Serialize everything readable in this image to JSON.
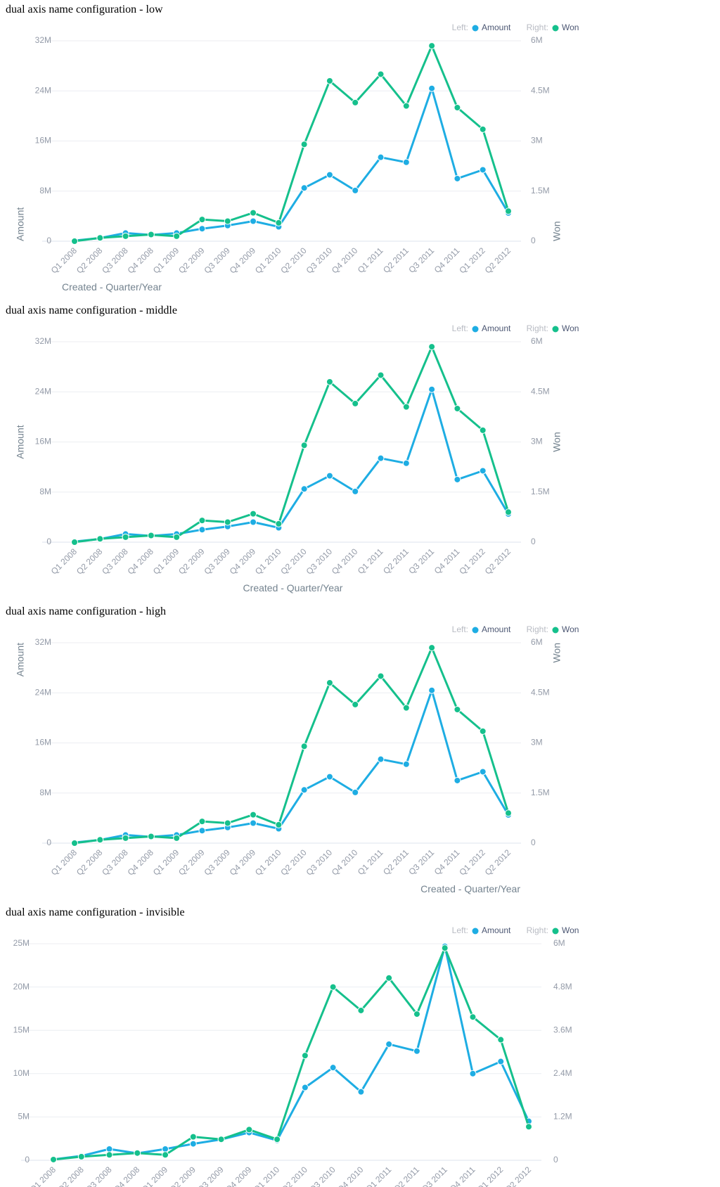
{
  "colors": {
    "amount": "#1eade3",
    "won": "#15c08c"
  },
  "legend": {
    "left_prefix": "Left:",
    "right_prefix": "Right:"
  },
  "categories": [
    "Q1 2008",
    "Q2 2008",
    "Q3 2008",
    "Q4 2008",
    "Q1 2009",
    "Q2 2009",
    "Q3 2009",
    "Q4 2009",
    "Q1 2010",
    "Q2 2010",
    "Q3 2010",
    "Q4 2010",
    "Q1 2011",
    "Q2 2011",
    "Q3 2011",
    "Q4 2011",
    "Q1 2012",
    "Q2 2012"
  ],
  "charts": [
    {
      "title": "dual axis name configuration - low",
      "x_title": "Created - Quarter/Year",
      "x_title_position": "low",
      "y_left_title": "Amount",
      "y_right_title": "Won",
      "left_ticks": [
        "0",
        "8M",
        "16M",
        "24M",
        "32M"
      ],
      "right_ticks": [
        "0",
        "1.5M",
        "3M",
        "4.5M",
        "6M"
      ]
    },
    {
      "title": "dual axis name configuration - middle",
      "x_title": "Created - Quarter/Year",
      "x_title_position": "middle",
      "y_left_title": "Amount",
      "y_right_title": "Won",
      "left_ticks": [
        "0",
        "8M",
        "16M",
        "24M",
        "32M"
      ],
      "right_ticks": [
        "0",
        "1.5M",
        "3M",
        "4.5M",
        "6M"
      ]
    },
    {
      "title": "dual axis name configuration - high",
      "x_title": "Created - Quarter/Year",
      "x_title_position": "high",
      "y_left_title": "Amount",
      "y_right_title": "Won",
      "left_ticks": [
        "0",
        "8M",
        "16M",
        "24M",
        "32M"
      ],
      "right_ticks": [
        "0",
        "1.5M",
        "3M",
        "4.5M",
        "6M"
      ]
    },
    {
      "title": "dual axis name configuration - invisible",
      "x_title": "",
      "x_title_position": "invisible",
      "y_left_title": "",
      "y_right_title": "",
      "left_ticks": [
        "0",
        "5M",
        "10M",
        "15M",
        "20M",
        "25M"
      ],
      "right_ticks": [
        "0",
        "1.2M",
        "2.4M",
        "3.6M",
        "4.8M",
        "6M"
      ]
    }
  ],
  "chart_data": [
    {
      "type": "line",
      "title": "dual axis name configuration - low",
      "xlabel": "Created - Quarter/Year",
      "ylabel_left": "Amount",
      "ylabel_right": "Won",
      "ylim_left": [
        0,
        32000000
      ],
      "ylim_right": [
        0,
        6000000
      ],
      "grid": true,
      "legend": "top-right",
      "series": [
        {
          "name": "Amount",
          "axis": "left",
          "values": [
            100000,
            500000,
            1300000,
            1000000,
            1300000,
            2000000,
            2500000,
            3200000,
            2300000,
            8500000,
            10600000,
            8100000,
            13400000,
            12600000,
            24400000,
            10000000,
            11400000,
            4500000
          ]
        },
        {
          "name": "Won",
          "axis": "right",
          "values": [
            0,
            100000,
            150000,
            200000,
            150000,
            650000,
            600000,
            850000,
            550000,
            2900000,
            4800000,
            4150000,
            5000000,
            4050000,
            5850000,
            4000000,
            3350000,
            900000
          ]
        }
      ]
    },
    {
      "type": "line",
      "title": "dual axis name configuration - middle",
      "xlabel": "Created - Quarter/Year",
      "ylabel_left": "Amount",
      "ylabel_right": "Won",
      "ylim_left": [
        0,
        32000000
      ],
      "ylim_right": [
        0,
        6000000
      ],
      "grid": true,
      "legend": "top-right",
      "series": [
        {
          "name": "Amount",
          "axis": "left",
          "values": [
            100000,
            500000,
            1300000,
            1000000,
            1300000,
            2000000,
            2500000,
            3200000,
            2300000,
            8500000,
            10600000,
            8100000,
            13400000,
            12600000,
            24400000,
            10000000,
            11400000,
            4500000
          ]
        },
        {
          "name": "Won",
          "axis": "right",
          "values": [
            0,
            100000,
            150000,
            200000,
            150000,
            650000,
            600000,
            850000,
            550000,
            2900000,
            4800000,
            4150000,
            5000000,
            4050000,
            5850000,
            4000000,
            3350000,
            900000
          ]
        }
      ]
    },
    {
      "type": "line",
      "title": "dual axis name configuration - high",
      "xlabel": "Created - Quarter/Year",
      "ylabel_left": "Amount",
      "ylabel_right": "Won",
      "ylim_left": [
        0,
        32000000
      ],
      "ylim_right": [
        0,
        6000000
      ],
      "grid": true,
      "legend": "top-right",
      "series": [
        {
          "name": "Amount",
          "axis": "left",
          "values": [
            100000,
            500000,
            1300000,
            1000000,
            1300000,
            2000000,
            2500000,
            3200000,
            2300000,
            8500000,
            10600000,
            8100000,
            13400000,
            12600000,
            24400000,
            10000000,
            11400000,
            4500000
          ]
        },
        {
          "name": "Won",
          "axis": "right",
          "values": [
            0,
            100000,
            150000,
            200000,
            150000,
            650000,
            600000,
            850000,
            550000,
            2900000,
            4800000,
            4150000,
            5000000,
            4050000,
            5850000,
            4000000,
            3350000,
            900000
          ]
        }
      ]
    },
    {
      "type": "line",
      "title": "dual axis name configuration - invisible",
      "ylim_left": [
        0,
        25000000
      ],
      "ylim_right": [
        0,
        6000000
      ],
      "grid": true,
      "legend": "top-right",
      "series": [
        {
          "name": "Amount",
          "axis": "left",
          "values": [
            100000,
            500000,
            1300000,
            800000,
            1300000,
            1900000,
            2400000,
            3200000,
            2300000,
            8400000,
            10700000,
            7900000,
            13400000,
            12600000,
            24700000,
            10000000,
            11400000,
            4500000
          ]
        },
        {
          "name": "Won",
          "axis": "right",
          "values": [
            20000,
            100000,
            150000,
            200000,
            150000,
            650000,
            580000,
            850000,
            580000,
            2900000,
            4800000,
            4150000,
            5050000,
            4050000,
            5880000,
            3970000,
            3340000,
            930000
          ]
        }
      ]
    }
  ]
}
